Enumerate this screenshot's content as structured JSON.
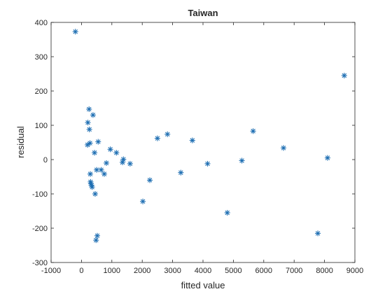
{
  "chart_data": {
    "type": "scatter",
    "title": "Taiwan",
    "xlabel": "fitted value",
    "ylabel": "residual",
    "xlim": [
      -1000,
      9000
    ],
    "ylim": [
      -300,
      400
    ],
    "xticks": [
      -1000,
      0,
      1000,
      2000,
      3000,
      4000,
      5000,
      6000,
      7000,
      8000,
      9000
    ],
    "yticks": [
      -300,
      -200,
      -100,
      0,
      100,
      200,
      300,
      400
    ],
    "xtick_labels": [
      "-1000",
      "0",
      "1000",
      "2000",
      "3000",
      "4000",
      "5000",
      "6000",
      "7000",
      "8000",
      "9000"
    ],
    "ytick_labels": [
      "-300",
      "-200",
      "-100",
      "0",
      "100",
      "200",
      "300",
      "400"
    ],
    "grid": false,
    "marker": "*",
    "color": "#1f6fb3",
    "points": [
      {
        "x": -200,
        "y": 373
      },
      {
        "x": 200,
        "y": 43
      },
      {
        "x": 210,
        "y": 108
      },
      {
        "x": 250,
        "y": 147
      },
      {
        "x": 260,
        "y": 88
      },
      {
        "x": 280,
        "y": 48
      },
      {
        "x": 290,
        "y": -42
      },
      {
        "x": 300,
        "y": -65
      },
      {
        "x": 310,
        "y": -70
      },
      {
        "x": 330,
        "y": -75
      },
      {
        "x": 350,
        "y": -80
      },
      {
        "x": 380,
        "y": 130
      },
      {
        "x": 430,
        "y": 20
      },
      {
        "x": 450,
        "y": -100
      },
      {
        "x": 480,
        "y": -235
      },
      {
        "x": 520,
        "y": -222
      },
      {
        "x": 500,
        "y": -30
      },
      {
        "x": 550,
        "y": 52
      },
      {
        "x": 650,
        "y": -30
      },
      {
        "x": 750,
        "y": -42
      },
      {
        "x": 820,
        "y": -10
      },
      {
        "x": 950,
        "y": 30
      },
      {
        "x": 1150,
        "y": 20
      },
      {
        "x": 1350,
        "y": -8
      },
      {
        "x": 1380,
        "y": 1
      },
      {
        "x": 1600,
        "y": -12
      },
      {
        "x": 2020,
        "y": -122
      },
      {
        "x": 2250,
        "y": -60
      },
      {
        "x": 2500,
        "y": 62
      },
      {
        "x": 2830,
        "y": 74
      },
      {
        "x": 3270,
        "y": -38
      },
      {
        "x": 3650,
        "y": 56
      },
      {
        "x": 4150,
        "y": -12
      },
      {
        "x": 4800,
        "y": -155
      },
      {
        "x": 5280,
        "y": -3
      },
      {
        "x": 5650,
        "y": 83
      },
      {
        "x": 6650,
        "y": 34
      },
      {
        "x": 7780,
        "y": -215
      },
      {
        "x": 8100,
        "y": 5
      },
      {
        "x": 8650,
        "y": 245
      }
    ]
  }
}
